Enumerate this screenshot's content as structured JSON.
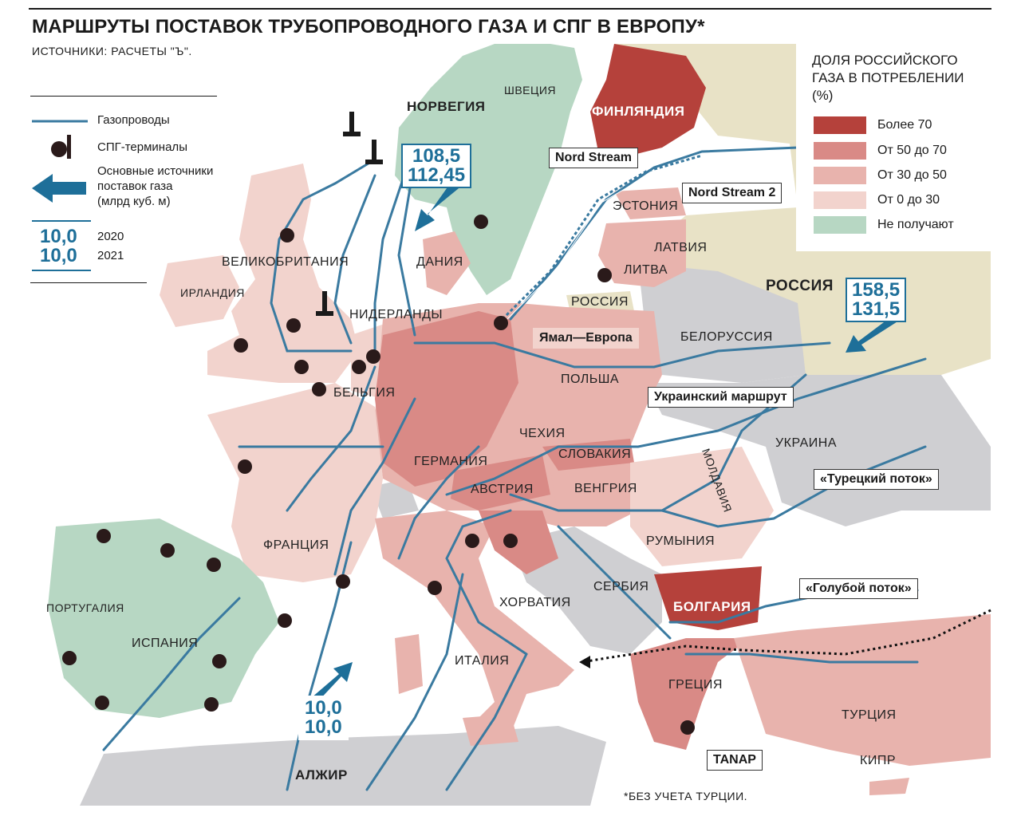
{
  "title": "МАРШРУТЫ ПОСТАВОК ТРУБОПРОВОДНОГО ГАЗА И СПГ В ЕВРОПУ*",
  "sources": "ИСТОЧНИКИ: РАСЧЕТЫ \"Ъ\".",
  "footnote": "*БЕЗ УЧЕТА ТУРЦИИ.",
  "legend_left": {
    "pipelines": "Газопроводы",
    "lng_terminals": "СПГ-терминалы",
    "main_sources": "Основные источники поставок газа (млрд куб. м)",
    "main_sources_line1": "Основные источники",
    "main_sources_line2": "поставок газа",
    "main_sources_line3": "(млрд куб. м)",
    "sample_value_2020": "10,0",
    "sample_value_2021": "10,0",
    "year_2020": "2020",
    "year_2021": "2021"
  },
  "legend_right": {
    "title": "ДОЛЯ РОССИЙСКОГО\nГАЗА В ПОТРЕБЛЕНИИ\n(%)",
    "items": [
      {
        "label": "Более 70",
        "color": "#b5413b"
      },
      {
        "label": "От 50 до 70",
        "color": "#d98a86"
      },
      {
        "label": "От 30 до 50",
        "color": "#e8b3ad"
      },
      {
        "label": "От 0 до 30",
        "color": "#f2d3cd"
      },
      {
        "label": "Не получают",
        "color": "#b7d7c3"
      }
    ]
  },
  "colors": {
    "sea": "#ffffff",
    "russia_land": "#e8e2c6",
    "no_data_land": "#cfcfd2",
    "pipeline": "#3a7aa0",
    "flow_text": "#1e6f99"
  },
  "countries": {
    "norway": "НОРВЕГИЯ",
    "sweden": "ШВЕЦИЯ",
    "finland": "ФИНЛЯНДИЯ",
    "estonia": "ЭСТОНИЯ",
    "latvia": "ЛАТВИЯ",
    "lithuania": "ЛИТВА",
    "russia_kaliningrad": "РОССИЯ",
    "russia": "РОССИЯ",
    "belarus": "БЕЛОРУССИЯ",
    "denmark": "ДАНИЯ",
    "uk": "ВЕЛИКОБРИТАНИЯ",
    "ireland": "ИРЛАНДИЯ",
    "netherlands": "НИДЕРЛАНДЫ",
    "belgium": "БЕЛЬГИЯ",
    "poland": "ПОЛЬША",
    "czechia": "ЧЕХИЯ",
    "slovakia": "СЛОВАКИЯ",
    "germany": "ГЕРМАНИЯ",
    "austria": "АВСТРИЯ",
    "hungary": "ВЕНГРИЯ",
    "ukraine": "УКРАИНА",
    "moldova": "МОЛДАВИЯ",
    "romania": "РУМЫНИЯ",
    "france": "ФРАНЦИЯ",
    "serbia": "СЕРБИЯ",
    "croatia": "ХОРВАТИЯ",
    "bulgaria": "БОЛГАРИЯ",
    "portugal": "ПОРТУГАЛИЯ",
    "spain": "ИСПАНИЯ",
    "italy": "ИТАЛИЯ",
    "greece": "ГРЕЦИЯ",
    "turkey": "ТУРЦИЯ",
    "cyprus": "КИПР",
    "algeria": "АЛЖИР"
  },
  "pipelines_named": {
    "nord_stream": "Nord Stream",
    "nord_stream_2": "Nord Stream 2",
    "yamal_europe": "Ямал—Европа",
    "ukrainian_route": "Украинский маршрут",
    "turkish_stream": "«Турецкий поток»",
    "blue_stream": "«Голубой поток»",
    "tanap": "TANAP"
  },
  "flows": {
    "norway": {
      "y2020": "108,5",
      "y2021": "112,45"
    },
    "russia": {
      "y2020": "158,5",
      "y2021": "131,5"
    },
    "algeria": {
      "y2020": "10,0",
      "y2021": "10,0"
    }
  }
}
